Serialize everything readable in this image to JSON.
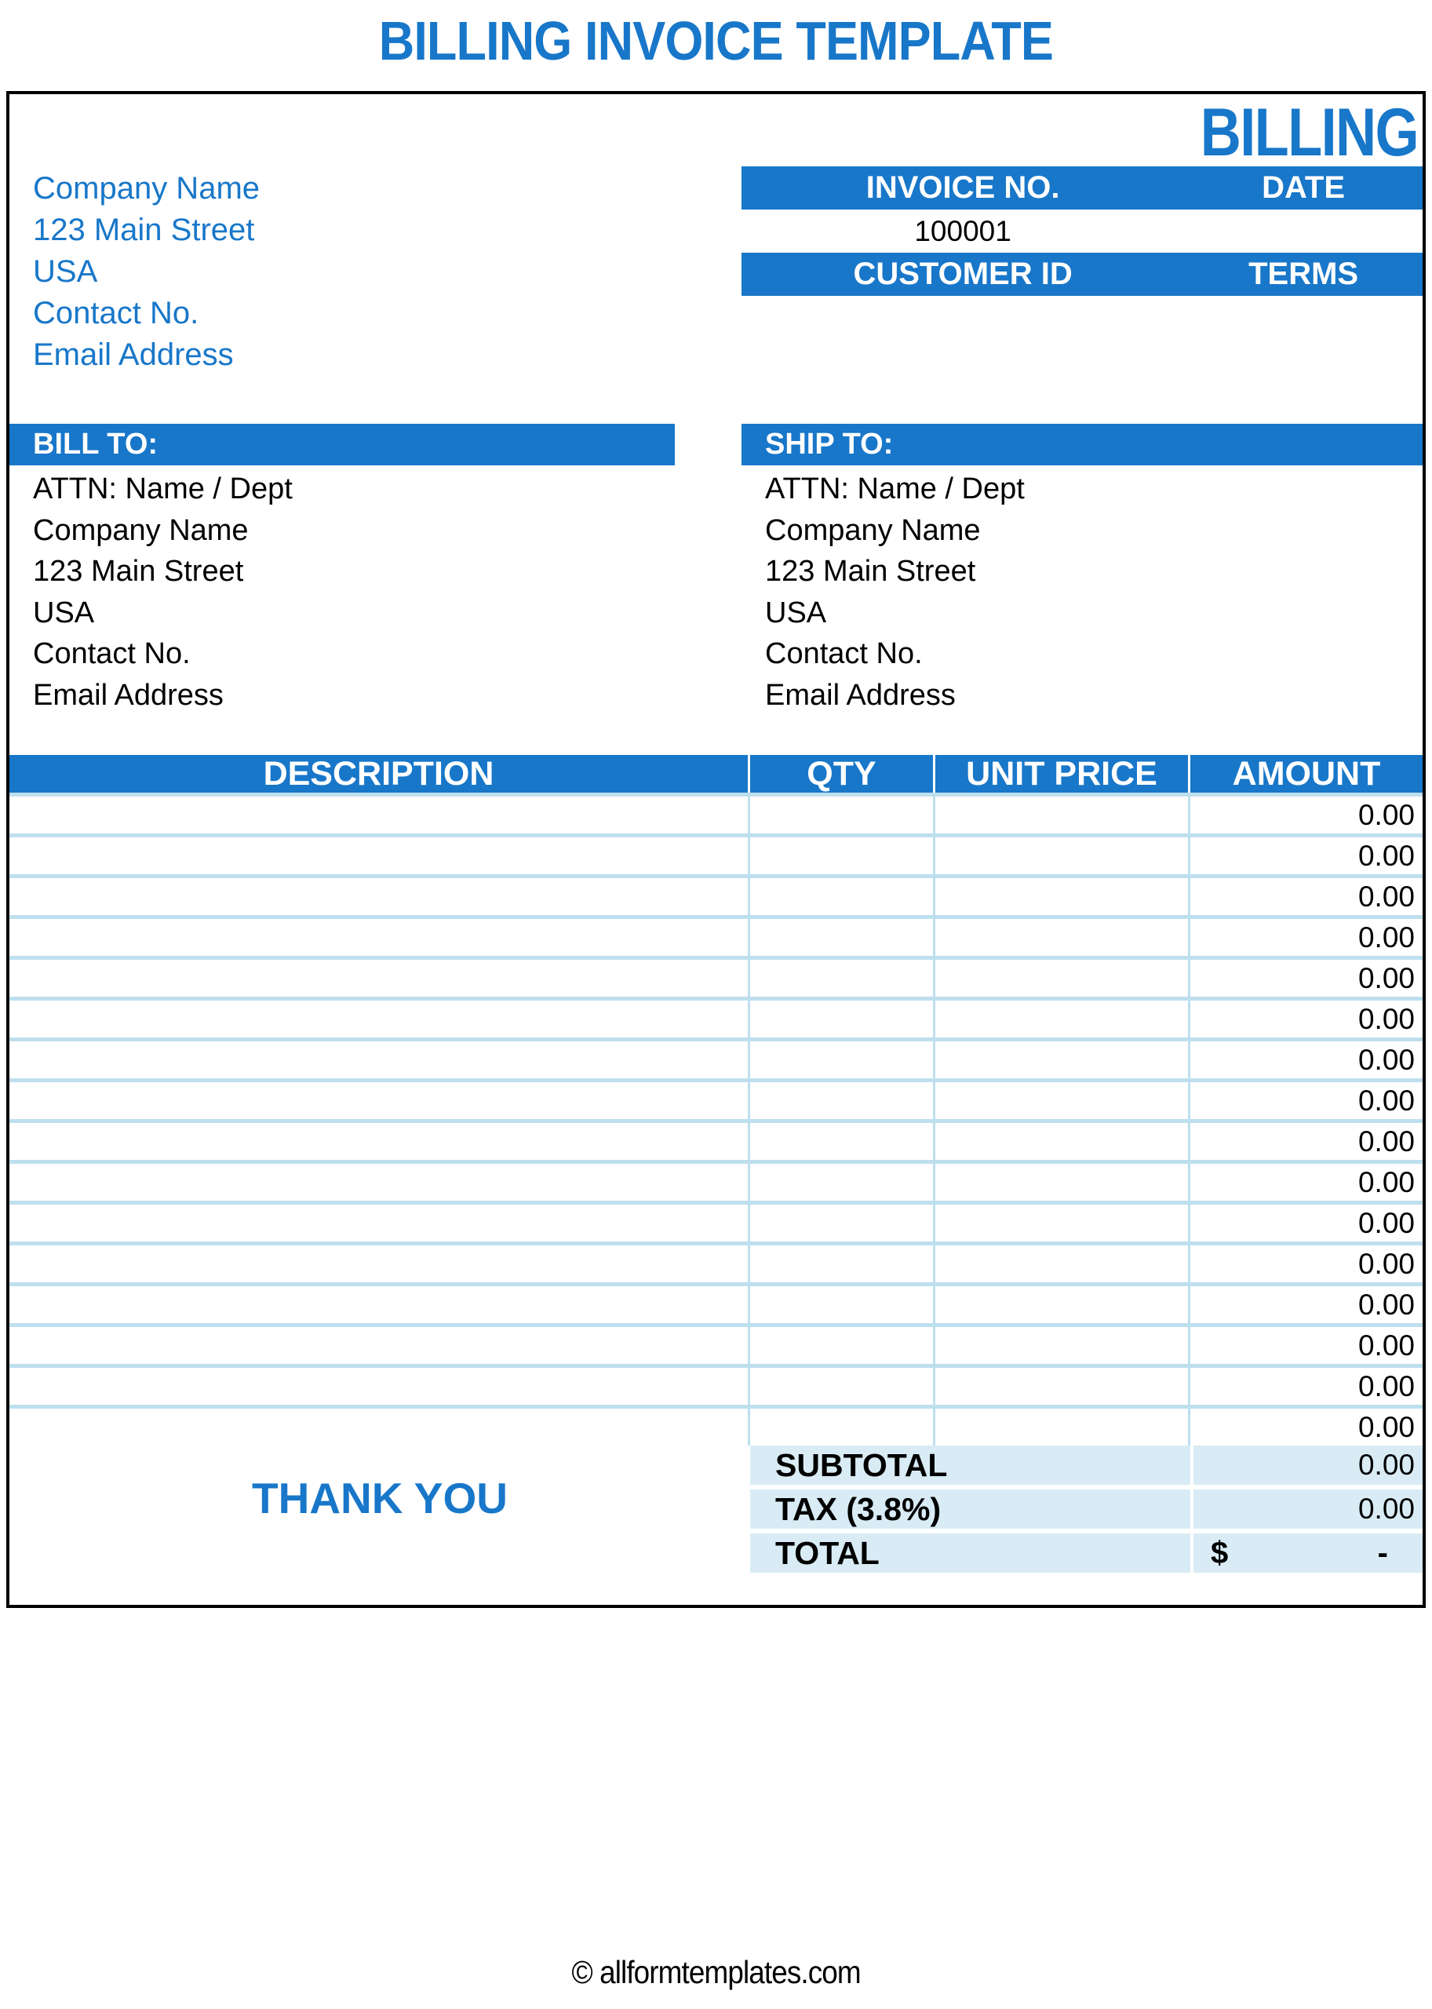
{
  "page_title": "BILLING INVOICE TEMPLATE",
  "watermark_title": "BILLING",
  "company_info": {
    "lines": [
      "Company Name",
      "123 Main Street",
      "USA",
      "Contact No.",
      "Email Address"
    ]
  },
  "invoice_meta": {
    "invoice_no_label": "INVOICE NO.",
    "date_label": "DATE",
    "invoice_no_value": "100001",
    "date_value": "",
    "customer_id_label": "CUSTOMER ID",
    "terms_label": "TERMS",
    "customer_id_value": "",
    "terms_value": ""
  },
  "bill_to": {
    "label": "BILL TO:",
    "lines": [
      "ATTN: Name / Dept",
      "Company Name",
      "123 Main Street",
      "USA",
      "Contact No.",
      "Email Address"
    ]
  },
  "ship_to": {
    "label": "SHIP TO:",
    "lines": [
      "ATTN: Name / Dept",
      "Company Name",
      "123 Main Street",
      "USA",
      "Contact No.",
      "Email Address"
    ]
  },
  "items_table": {
    "headers": [
      "DESCRIPTION",
      "QTY",
      "UNIT PRICE",
      "AMOUNT"
    ],
    "rows": [
      {
        "description": "",
        "qty": "",
        "unit_price": "",
        "amount": "0.00"
      },
      {
        "description": "",
        "qty": "",
        "unit_price": "",
        "amount": "0.00"
      },
      {
        "description": "",
        "qty": "",
        "unit_price": "",
        "amount": "0.00"
      },
      {
        "description": "",
        "qty": "",
        "unit_price": "",
        "amount": "0.00"
      },
      {
        "description": "",
        "qty": "",
        "unit_price": "",
        "amount": "0.00"
      },
      {
        "description": "",
        "qty": "",
        "unit_price": "",
        "amount": "0.00"
      },
      {
        "description": "",
        "qty": "",
        "unit_price": "",
        "amount": "0.00"
      },
      {
        "description": "",
        "qty": "",
        "unit_price": "",
        "amount": "0.00"
      },
      {
        "description": "",
        "qty": "",
        "unit_price": "",
        "amount": "0.00"
      },
      {
        "description": "",
        "qty": "",
        "unit_price": "",
        "amount": "0.00"
      },
      {
        "description": "",
        "qty": "",
        "unit_price": "",
        "amount": "0.00"
      },
      {
        "description": "",
        "qty": "",
        "unit_price": "",
        "amount": "0.00"
      },
      {
        "description": "",
        "qty": "",
        "unit_price": "",
        "amount": "0.00"
      },
      {
        "description": "",
        "qty": "",
        "unit_price": "",
        "amount": "0.00"
      },
      {
        "description": "",
        "qty": "",
        "unit_price": "",
        "amount": "0.00"
      },
      {
        "description": "",
        "qty": "",
        "unit_price": "",
        "amount": "0.00"
      }
    ]
  },
  "summary": {
    "subtotal_label": "SUBTOTAL",
    "subtotal_value": "0.00",
    "tax_label": "TAX (3.8%)",
    "tax_value": "0.00",
    "total_label": "TOTAL",
    "total_currency": "$",
    "total_value": "-"
  },
  "thank_you": "THANK YOU",
  "footer": {
    "credit": "© allformtemplates.com"
  },
  "colors": {
    "accent_blue": "#1877C9",
    "table_line_blue": "#BEDFEE",
    "summary_bg": "#D9ECF5",
    "border_black": "#000000"
  }
}
